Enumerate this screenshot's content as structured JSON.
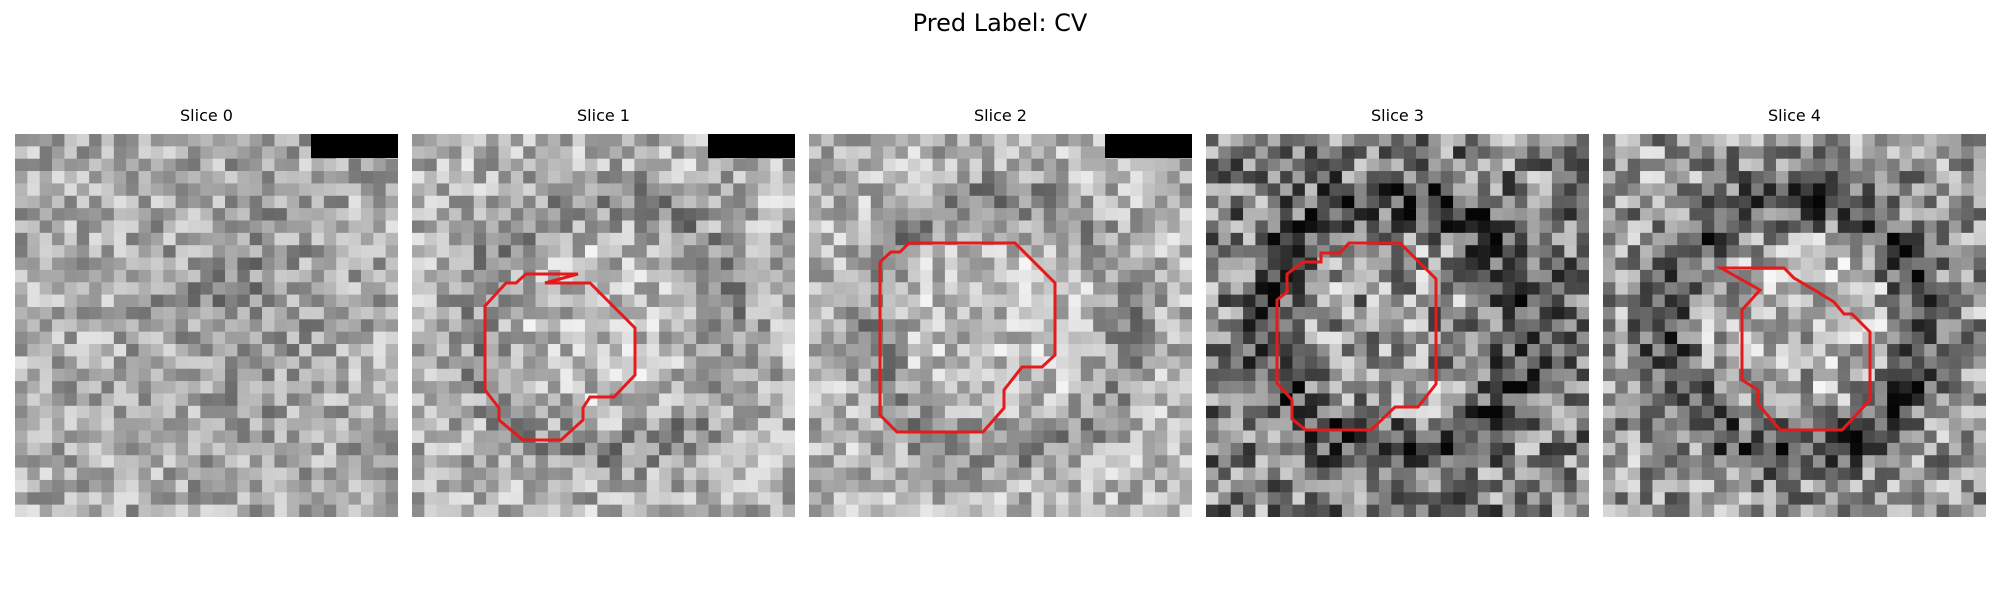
{
  "figure": {
    "title": "Pred Label: CV"
  },
  "slices": [
    {
      "title": "Slice 0",
      "seed": 11,
      "base": 172,
      "ring": 0,
      "noise": 56,
      "has_scale_bar": true,
      "contour": false
    },
    {
      "title": "Slice 1",
      "seed": 23,
      "base": 178,
      "ring": 35,
      "noise": 58,
      "has_scale_bar": true,
      "contour": true
    },
    {
      "title": "Slice 2",
      "seed": 37,
      "base": 180,
      "ring": 40,
      "noise": 56,
      "has_scale_bar": true,
      "contour": true
    },
    {
      "title": "Slice 3",
      "seed": 51,
      "base": 130,
      "ring": 70,
      "noise": 90,
      "has_scale_bar": false,
      "contour": true
    },
    {
      "title": "Slice 4",
      "seed": 73,
      "base": 150,
      "ring": 80,
      "noise": 80,
      "has_scale_bar": false,
      "contour": true
    }
  ],
  "colors": {
    "contour": "#e41a1c",
    "scale_bar": "#000000"
  }
}
